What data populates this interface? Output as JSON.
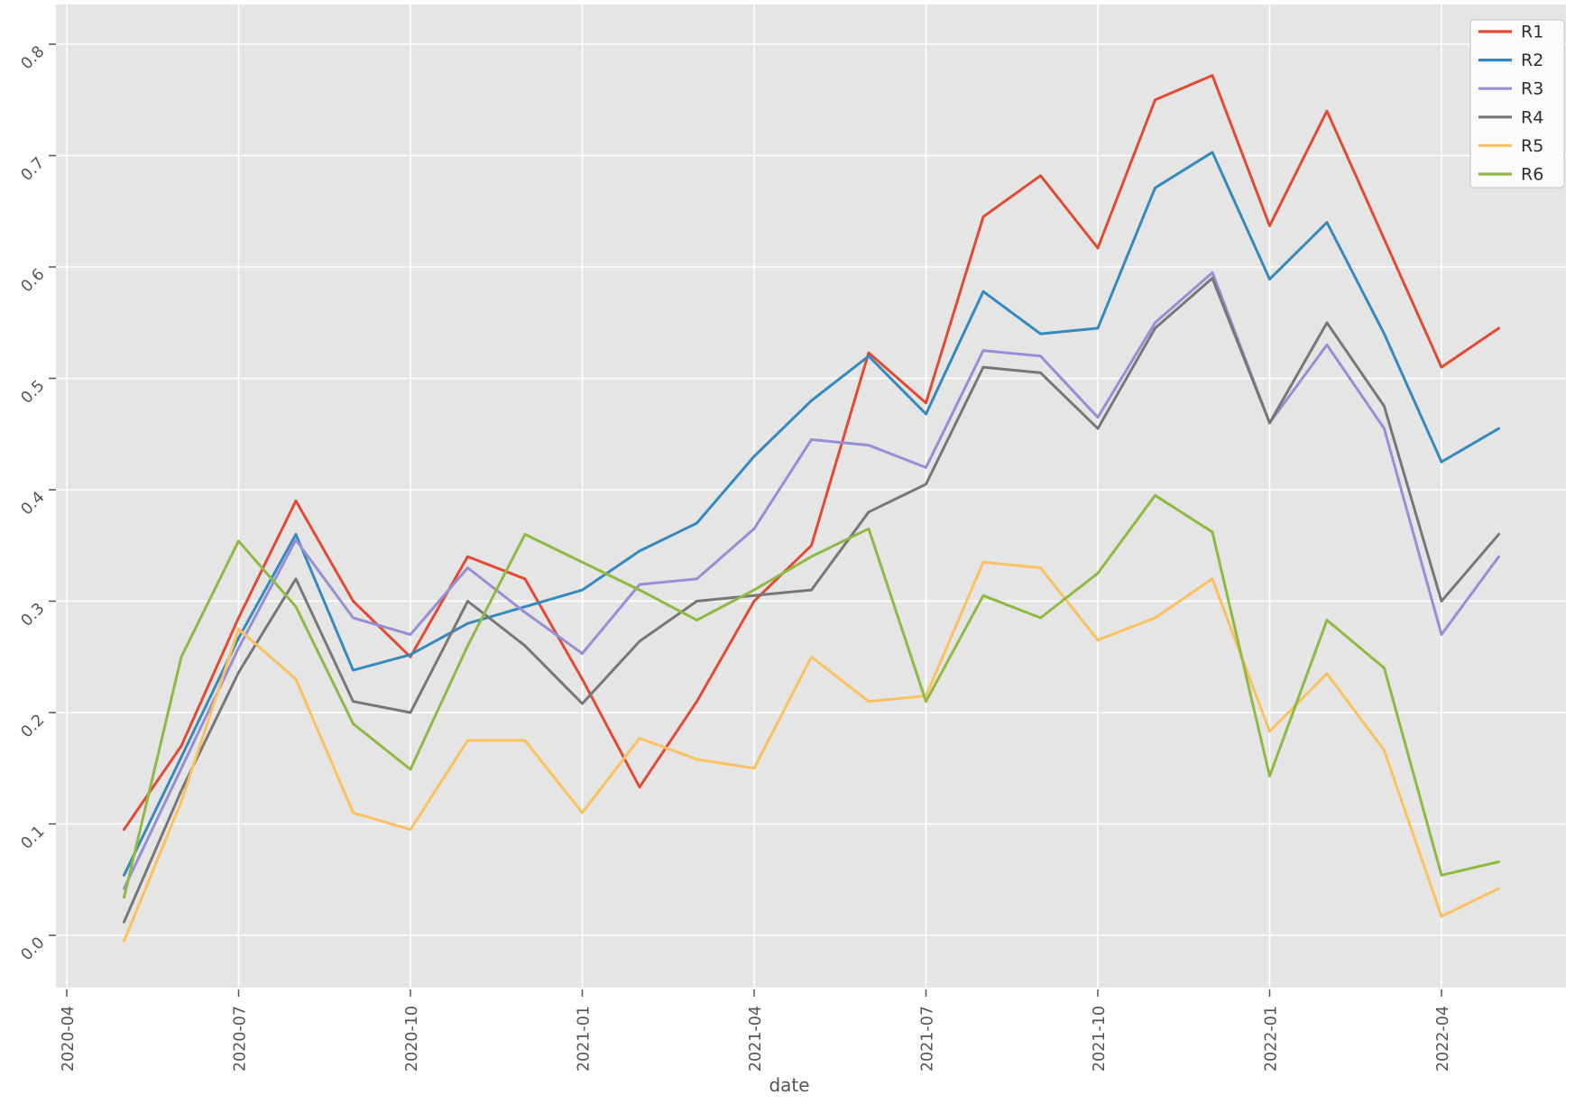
{
  "figure": {
    "background": "#ffffff",
    "plot_background": "#e5e5e5",
    "grid_color": "#ffffff",
    "tick_text_color": "#555555",
    "legend_text_color": "#2e2e2e",
    "legend_background": "#fbfbfb",
    "legend_border": "#cccccc"
  },
  "chart_data": {
    "type": "line",
    "title": "",
    "xlabel": "date",
    "ylabel": "",
    "grid": true,
    "legend_position": "upper-right",
    "x": [
      "2020-05",
      "2020-06",
      "2020-07",
      "2020-08",
      "2020-09",
      "2020-10",
      "2020-11",
      "2020-12",
      "2021-01",
      "2021-02",
      "2021-03",
      "2021-04",
      "2021-05",
      "2021-06",
      "2021-07",
      "2021-08",
      "2021-09",
      "2021-10",
      "2021-11",
      "2021-12",
      "2022-01",
      "2022-02",
      "2022-03",
      "2022-04",
      "2022-05"
    ],
    "series": [
      {
        "name": "R1",
        "color": "#E24A33",
        "values": [
          0.095,
          0.17,
          0.285,
          0.39,
          0.3,
          0.25,
          0.34,
          0.32,
          0.23,
          0.133,
          0.21,
          0.3,
          0.35,
          0.523,
          0.478,
          0.645,
          0.682,
          0.617,
          0.75,
          0.772,
          0.637,
          0.74,
          0.625,
          0.51,
          0.545
        ]
      },
      {
        "name": "R2",
        "color": "#348ABD",
        "values": [
          0.054,
          0.16,
          0.267,
          0.36,
          0.238,
          0.252,
          0.28,
          0.295,
          0.31,
          0.345,
          0.37,
          0.43,
          0.48,
          0.52,
          0.468,
          0.578,
          0.54,
          0.545,
          0.671,
          0.703,
          0.589,
          0.64,
          0.54,
          0.425,
          0.455
        ]
      },
      {
        "name": "R3",
        "color": "#988ED5",
        "values": [
          0.042,
          0.15,
          0.258,
          0.355,
          0.285,
          0.27,
          0.33,
          0.29,
          0.253,
          0.315,
          0.32,
          0.365,
          0.445,
          0.44,
          0.42,
          0.525,
          0.52,
          0.465,
          0.55,
          0.595,
          0.46,
          0.53,
          0.455,
          0.27,
          0.34
        ]
      },
      {
        "name": "R4",
        "color": "#777777",
        "values": [
          0.012,
          0.13,
          0.236,
          0.32,
          0.21,
          0.2,
          0.3,
          0.26,
          0.208,
          0.264,
          0.3,
          0.305,
          0.31,
          0.38,
          0.405,
          0.51,
          0.505,
          0.455,
          0.545,
          0.59,
          0.46,
          0.55,
          0.475,
          0.3,
          0.36
        ]
      },
      {
        "name": "R5",
        "color": "#FBC15E",
        "values": [
          -0.005,
          0.12,
          0.275,
          0.23,
          0.11,
          0.095,
          0.175,
          0.175,
          0.11,
          0.177,
          0.158,
          0.15,
          0.25,
          0.21,
          0.215,
          0.335,
          0.33,
          0.265,
          0.285,
          0.32,
          0.183,
          0.235,
          0.166,
          0.017,
          0.042
        ]
      },
      {
        "name": "R6",
        "color": "#8EBA42",
        "values": [
          0.034,
          0.25,
          0.354,
          0.295,
          0.19,
          0.149,
          0.26,
          0.36,
          0.335,
          0.31,
          0.283,
          0.31,
          0.34,
          0.365,
          0.21,
          0.305,
          0.285,
          0.325,
          0.395,
          0.362,
          0.143,
          0.283,
          0.24,
          0.054,
          0.066
        ]
      }
    ],
    "xticks": [
      "2020-04",
      "2020-07",
      "2020-10",
      "2021-01",
      "2021-04",
      "2021-07",
      "2021-10",
      "2022-01",
      "2022-04"
    ],
    "yticks": [
      "0.0",
      "0.1",
      "0.2",
      "0.3",
      "0.4",
      "0.5",
      "0.6",
      "0.7",
      "0.8"
    ],
    "ylim": [
      -0.047,
      0.836
    ],
    "legend_entries": [
      "R1",
      "R2",
      "R3",
      "R4",
      "R5",
      "R6"
    ]
  }
}
